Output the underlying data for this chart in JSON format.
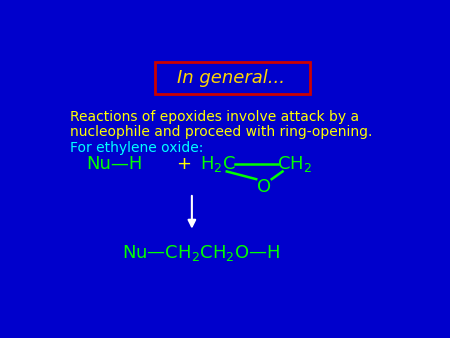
{
  "background_color": "#0000CC",
  "title_text": "In general...",
  "title_color": "#FFD700",
  "title_box_edgecolor": "#CC0000",
  "text1_line1": "Reactions of epoxides involve attack by a",
  "text1_line2": "nucleophile and proceed with ring-opening.",
  "text1_color": "#FFFF00",
  "text2": "For ethylene oxide:",
  "text2_color": "#00FFFF",
  "chem_color": "#00FF00",
  "plus_color": "#FFFF00",
  "arrow_color": "#FFFFFF",
  "emdash": "—"
}
